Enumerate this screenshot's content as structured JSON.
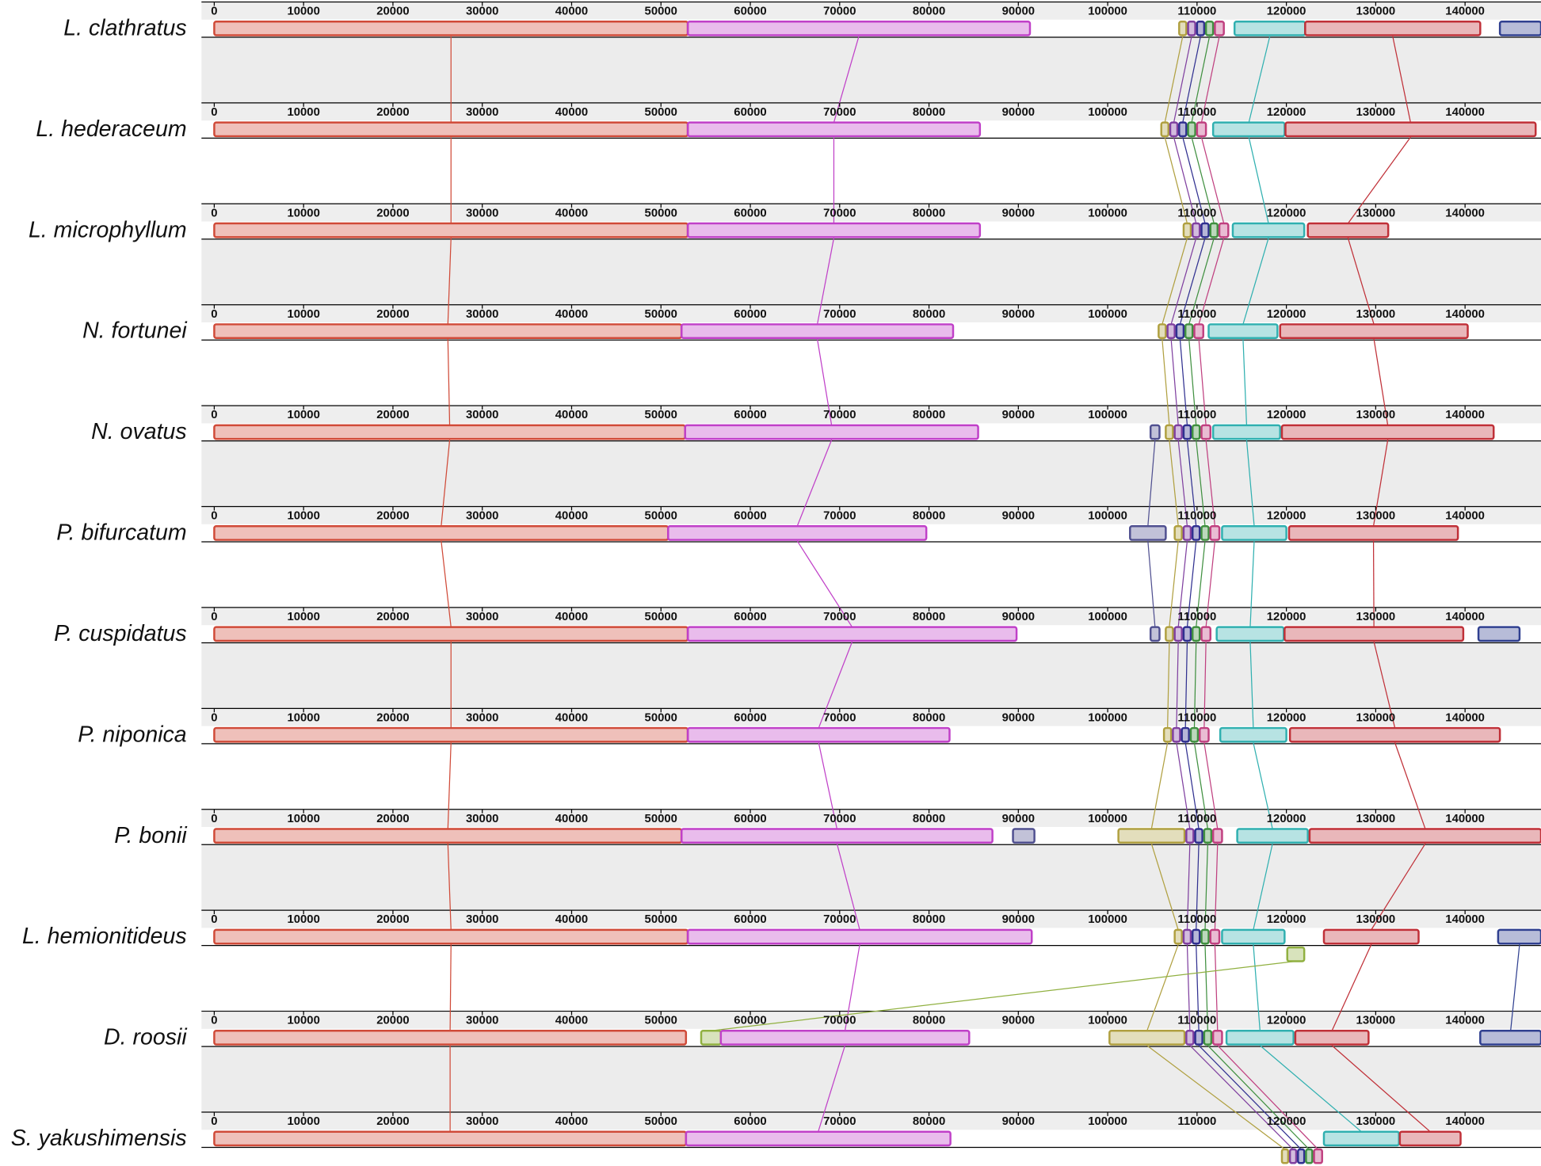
{
  "chart_data": {
    "type": "alignment",
    "xlim": [
      0,
      148500
    ],
    "xticks": [
      0,
      10000,
      20000,
      30000,
      40000,
      50000,
      60000,
      70000,
      80000,
      90000,
      100000,
      110000,
      120000,
      130000,
      140000
    ],
    "lcb_colors": [
      "#d04a38",
      "#c040c8",
      "#b0a040",
      "#8040a0",
      "#303090",
      "#409040",
      "#c04080",
      "#30b0b0",
      "#c03038",
      "#304090",
      "#90b040",
      "#505090"
    ],
    "tracks": [
      {
        "name": "L. clathratus",
        "blocks": [
          {
            "lcb": 0,
            "start": 0,
            "end": 53000
          },
          {
            "lcb": 1,
            "start": 53000,
            "end": 91300
          },
          {
            "lcb": 2,
            "start": 108000,
            "end": 108800
          },
          {
            "lcb": 3,
            "start": 109000,
            "end": 109800
          },
          {
            "lcb": 4,
            "start": 110000,
            "end": 110800
          },
          {
            "lcb": 5,
            "start": 111000,
            "end": 111800
          },
          {
            "lcb": 6,
            "start": 112000,
            "end": 113000
          },
          {
            "lcb": 7,
            "start": 114200,
            "end": 122100
          },
          {
            "lcb": 8,
            "start": 122100,
            "end": 141700
          },
          {
            "lcb": 9,
            "start": 143900,
            "end": 148500
          }
        ]
      },
      {
        "name": "L. hederaceum",
        "blocks": [
          {
            "lcb": 0,
            "start": 0,
            "end": 53000
          },
          {
            "lcb": 1,
            "start": 53000,
            "end": 85700
          },
          {
            "lcb": 2,
            "start": 106000,
            "end": 106800
          },
          {
            "lcb": 3,
            "start": 107000,
            "end": 107800
          },
          {
            "lcb": 4,
            "start": 108000,
            "end": 108800
          },
          {
            "lcb": 5,
            "start": 109000,
            "end": 109800
          },
          {
            "lcb": 6,
            "start": 110000,
            "end": 111000
          },
          {
            "lcb": 7,
            "start": 111800,
            "end": 119800
          },
          {
            "lcb": 8,
            "start": 119900,
            "end": 147900
          }
        ]
      },
      {
        "name": "L. microphyllum",
        "blocks": [
          {
            "lcb": 0,
            "start": 0,
            "end": 53000
          },
          {
            "lcb": 1,
            "start": 53000,
            "end": 85700
          },
          {
            "lcb": 2,
            "start": 108500,
            "end": 109300
          },
          {
            "lcb": 3,
            "start": 109500,
            "end": 110300
          },
          {
            "lcb": 4,
            "start": 110500,
            "end": 111300
          },
          {
            "lcb": 5,
            "start": 111500,
            "end": 112300
          },
          {
            "lcb": 6,
            "start": 112500,
            "end": 113500
          },
          {
            "lcb": 7,
            "start": 114000,
            "end": 122000
          },
          {
            "lcb": 8,
            "start": 122400,
            "end": 131400
          }
        ]
      },
      {
        "name": "N. fortunei",
        "blocks": [
          {
            "lcb": 0,
            "start": 0,
            "end": 52300
          },
          {
            "lcb": 1,
            "start": 52300,
            "end": 82700
          },
          {
            "lcb": 2,
            "start": 105700,
            "end": 106500
          },
          {
            "lcb": 3,
            "start": 106700,
            "end": 107500
          },
          {
            "lcb": 4,
            "start": 107700,
            "end": 108500
          },
          {
            "lcb": 5,
            "start": 108700,
            "end": 109500
          },
          {
            "lcb": 6,
            "start": 109700,
            "end": 110700
          },
          {
            "lcb": 7,
            "start": 111300,
            "end": 119000
          },
          {
            "lcb": 8,
            "start": 119300,
            "end": 140300
          }
        ]
      },
      {
        "name": "N. ovatus",
        "blocks": [
          {
            "lcb": 0,
            "start": 0,
            "end": 52700
          },
          {
            "lcb": 1,
            "start": 52700,
            "end": 85500
          },
          {
            "lcb": 11,
            "start": 104800,
            "end": 105800
          },
          {
            "lcb": 2,
            "start": 106500,
            "end": 107300
          },
          {
            "lcb": 3,
            "start": 107500,
            "end": 108300
          },
          {
            "lcb": 4,
            "start": 108500,
            "end": 109300
          },
          {
            "lcb": 5,
            "start": 109500,
            "end": 110300
          },
          {
            "lcb": 6,
            "start": 110500,
            "end": 111500
          },
          {
            "lcb": 7,
            "start": 111800,
            "end": 119300
          },
          {
            "lcb": 8,
            "start": 119500,
            "end": 143200
          }
        ]
      },
      {
        "name": "P. bifurcatum",
        "blocks": [
          {
            "lcb": 0,
            "start": 0,
            "end": 50800
          },
          {
            "lcb": 1,
            "start": 50800,
            "end": 79700
          },
          {
            "lcb": 11,
            "start": 102500,
            "end": 106500
          },
          {
            "lcb": 2,
            "start": 107500,
            "end": 108300
          },
          {
            "lcb": 3,
            "start": 108500,
            "end": 109300
          },
          {
            "lcb": 4,
            "start": 109500,
            "end": 110300
          },
          {
            "lcb": 5,
            "start": 110500,
            "end": 111300
          },
          {
            "lcb": 6,
            "start": 111500,
            "end": 112500
          },
          {
            "lcb": 7,
            "start": 112800,
            "end": 120000
          },
          {
            "lcb": 8,
            "start": 120300,
            "end": 139200
          }
        ]
      },
      {
        "name": "P. cuspidatus",
        "blocks": [
          {
            "lcb": 0,
            "start": 0,
            "end": 53000
          },
          {
            "lcb": 1,
            "start": 53000,
            "end": 89800
          },
          {
            "lcb": 11,
            "start": 104800,
            "end": 105800
          },
          {
            "lcb": 2,
            "start": 106500,
            "end": 107300
          },
          {
            "lcb": 3,
            "start": 107500,
            "end": 108300
          },
          {
            "lcb": 4,
            "start": 108500,
            "end": 109300
          },
          {
            "lcb": 5,
            "start": 109500,
            "end": 110300
          },
          {
            "lcb": 6,
            "start": 110500,
            "end": 111500
          },
          {
            "lcb": 7,
            "start": 112200,
            "end": 119700
          },
          {
            "lcb": 8,
            "start": 119800,
            "end": 139800
          },
          {
            "lcb": 9,
            "start": 141500,
            "end": 146100
          }
        ]
      },
      {
        "name": "P. niponica",
        "blocks": [
          {
            "lcb": 0,
            "start": 0,
            "end": 53000
          },
          {
            "lcb": 1,
            "start": 53000,
            "end": 82300
          },
          {
            "lcb": 2,
            "start": 106300,
            "end": 107100
          },
          {
            "lcb": 3,
            "start": 107300,
            "end": 108100
          },
          {
            "lcb": 4,
            "start": 108300,
            "end": 109100
          },
          {
            "lcb": 5,
            "start": 109300,
            "end": 110100
          },
          {
            "lcb": 6,
            "start": 110300,
            "end": 111300
          },
          {
            "lcb": 7,
            "start": 112600,
            "end": 120000
          },
          {
            "lcb": 8,
            "start": 120400,
            "end": 143900
          }
        ]
      },
      {
        "name": "P. bonii",
        "blocks": [
          {
            "lcb": 0,
            "start": 0,
            "end": 52300
          },
          {
            "lcb": 1,
            "start": 52300,
            "end": 87100
          },
          {
            "lcb": 11,
            "start": 89400,
            "end": 91800
          },
          {
            "lcb": 2,
            "start": 101200,
            "end": 108600
          },
          {
            "lcb": 3,
            "start": 108800,
            "end": 109600
          },
          {
            "lcb": 4,
            "start": 109800,
            "end": 110600
          },
          {
            "lcb": 5,
            "start": 110800,
            "end": 111600
          },
          {
            "lcb": 6,
            "start": 111800,
            "end": 112800
          },
          {
            "lcb": 7,
            "start": 114500,
            "end": 122400
          },
          {
            "lcb": 8,
            "start": 122600,
            "end": 148500
          }
        ]
      },
      {
        "name": "L. hemionitideus",
        "blocks": [
          {
            "lcb": 0,
            "start": 0,
            "end": 53000
          },
          {
            "lcb": 1,
            "start": 53000,
            "end": 91500
          },
          {
            "lcb": 2,
            "start": 107500,
            "end": 108300
          },
          {
            "lcb": 3,
            "start": 108500,
            "end": 109300
          },
          {
            "lcb": 4,
            "start": 109500,
            "end": 110300
          },
          {
            "lcb": 5,
            "start": 110500,
            "end": 111300
          },
          {
            "lcb": 6,
            "start": 111500,
            "end": 112500
          },
          {
            "lcb": 7,
            "start": 112800,
            "end": 119800
          },
          {
            "lcb": 10,
            "start": 120100,
            "end": 122000,
            "inverted": true
          },
          {
            "lcb": 8,
            "start": 124200,
            "end": 134800
          },
          {
            "lcb": 9,
            "start": 143700,
            "end": 148500
          }
        ]
      },
      {
        "name": "D. roosii",
        "blocks": [
          {
            "lcb": 0,
            "start": 0,
            "end": 52800
          },
          {
            "lcb": 10,
            "start": 54500,
            "end": 56700
          },
          {
            "lcb": 1,
            "start": 56700,
            "end": 84500
          },
          {
            "lcb": 2,
            "start": 100200,
            "end": 108600
          },
          {
            "lcb": 3,
            "start": 108800,
            "end": 109600
          },
          {
            "lcb": 4,
            "start": 109800,
            "end": 110600
          },
          {
            "lcb": 5,
            "start": 110800,
            "end": 111600
          },
          {
            "lcb": 6,
            "start": 111800,
            "end": 112800
          },
          {
            "lcb": 7,
            "start": 113300,
            "end": 120800
          },
          {
            "lcb": 8,
            "start": 121000,
            "end": 129200
          },
          {
            "lcb": 9,
            "start": 141700,
            "end": 148500
          }
        ]
      },
      {
        "name": "S. yakushimensis",
        "blocks": [
          {
            "lcb": 0,
            "start": 0,
            "end": 52800
          },
          {
            "lcb": 1,
            "start": 52800,
            "end": 82400
          },
          {
            "lcb": 2,
            "start": 119500,
            "end": 120200,
            "inverted": true
          },
          {
            "lcb": 3,
            "start": 120400,
            "end": 121100,
            "inverted": true
          },
          {
            "lcb": 4,
            "start": 121300,
            "end": 122000,
            "inverted": true
          },
          {
            "lcb": 5,
            "start": 122200,
            "end": 122900,
            "inverted": true
          },
          {
            "lcb": 6,
            "start": 123100,
            "end": 124000,
            "inverted": true
          },
          {
            "lcb": 7,
            "start": 124200,
            "end": 132600
          },
          {
            "lcb": 8,
            "start": 132700,
            "end": 139500
          }
        ]
      }
    ]
  }
}
